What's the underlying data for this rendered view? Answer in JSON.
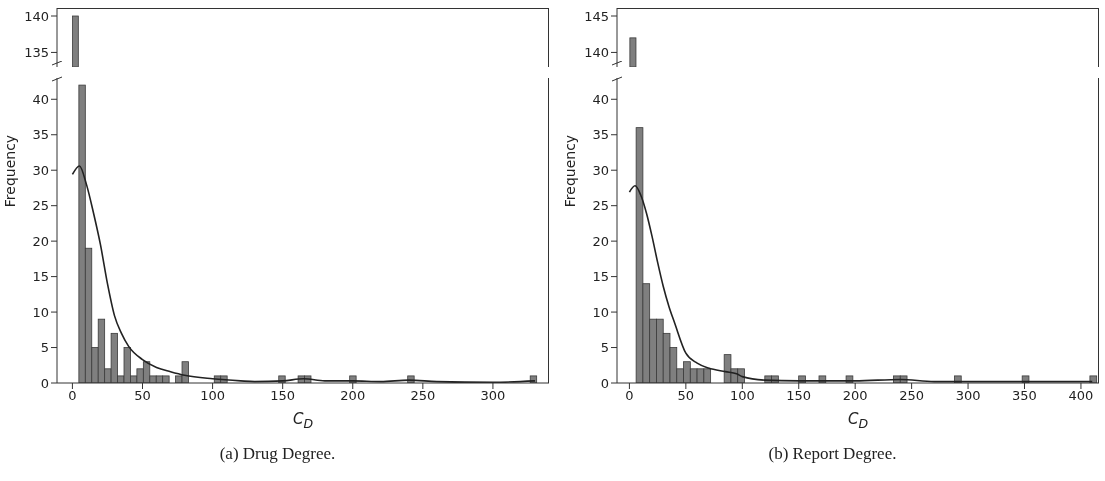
{
  "chart_data": [
    {
      "type": "bar",
      "tick_labels": "y",
      "categories": [
        null
      ],
      "values": [
        140
      ],
      "color": "#7f7f7f",
      "ylim": [
        133,
        141.1
      ],
      "yticks": [
        135,
        140
      ]
    },
    {
      "type": "histogram",
      "title": "(a) Drug Degree.",
      "xlabel": "C$_{D}$",
      "ylabel": "Frequency",
      "xlim": [
        -11,
        340
      ],
      "xticks": [
        0,
        50,
        100,
        150,
        200,
        250,
        300
      ],
      "ylim": [
        0,
        43
      ],
      "yticks": [
        0,
        5,
        10,
        15,
        20,
        25,
        30,
        35,
        40
      ],
      "bins": [
        0,
        4.6,
        9.2,
        13.8,
        18.4,
        23,
        27.6,
        32.2,
        36.8,
        41.4,
        46,
        50.6,
        55.2,
        59.8,
        64.4,
        69,
        73.6,
        78.2,
        82.8,
        87.4,
        92,
        96.6,
        101.2,
        105.8,
        110.4,
        115,
        119.6,
        124.2,
        128.8,
        133.4,
        138,
        142.6,
        147.2,
        151.8,
        156.4,
        161,
        165.6,
        170.2,
        174.8,
        179.4,
        184,
        188.6,
        193.2,
        197.8,
        202.4,
        207,
        211.6,
        216.2,
        220.8,
        225.4,
        230,
        234.6,
        239.2,
        243.8,
        248.4,
        253,
        257.6,
        262.2,
        266.8,
        271.4,
        276,
        280.6,
        285.2,
        289.8,
        294.4,
        299,
        303.6,
        308.2,
        312.8,
        317.4,
        322,
        326.6,
        331.2
      ],
      "series": [
        {
          "color": "#7f7f7f",
          "values": [
            null,
            42,
            19,
            5,
            9,
            2,
            7,
            1,
            5,
            1,
            2,
            3,
            1,
            1,
            1,
            0,
            1,
            3,
            0,
            0,
            0,
            0,
            1,
            1,
            0,
            0,
            0,
            0,
            0,
            0,
            0,
            0,
            1,
            0,
            0,
            1,
            1,
            0,
            0,
            0,
            0,
            0,
            0,
            1,
            0,
            0,
            0,
            0,
            0,
            0,
            0,
            0,
            1,
            0,
            0,
            0,
            0,
            0,
            0,
            0,
            0,
            0,
            0,
            0,
            0,
            0,
            0,
            0,
            0,
            0,
            0,
            1
          ]
        },
        {
          "type": "line",
          "color": "#222222",
          "x": [
            0,
            5,
            10,
            15,
            20,
            25,
            30,
            35,
            40,
            50,
            60,
            70,
            80,
            100,
            120,
            130,
            150,
            165,
            180,
            200,
            220,
            240,
            260,
            300,
            330
          ],
          "values": [
            29.4,
            30.6,
            28,
            24,
            19.5,
            14,
            9.5,
            7,
            5.2,
            3.3,
            2.2,
            1.6,
            1.1,
            0.6,
            0.3,
            0.2,
            0.3,
            0.6,
            0.3,
            0.3,
            0.2,
            0.4,
            0.2,
            0.1,
            0.3
          ]
        }
      ]
    },
    {
      "type": "bar",
      "tick_labels": "y",
      "categories": [
        null
      ],
      "values": [
        142
      ],
      "color": "#7f7f7f",
      "ylim": [
        138,
        146.1
      ],
      "yticks": [
        140,
        145
      ]
    },
    {
      "type": "histogram",
      "title": "(b) Report Degree.",
      "xlabel": "C$_{D}$",
      "ylabel": "Frequency",
      "xlim": [
        -11,
        416
      ],
      "xticks": [
        0,
        50,
        100,
        150,
        200,
        250,
        300,
        350,
        400
      ],
      "ylim": [
        0,
        43
      ],
      "yticks": [
        0,
        5,
        10,
        15,
        20,
        25,
        30,
        35,
        40
      ],
      "bins": [
        0,
        6,
        12,
        18,
        24,
        30,
        36,
        42,
        48,
        54,
        60,
        66,
        72,
        78,
        84,
        90,
        96,
        102,
        108,
        114,
        120,
        126,
        132,
        138,
        144,
        150,
        156,
        162,
        168,
        174,
        180,
        186,
        192,
        198,
        204,
        210,
        216,
        222,
        228,
        234,
        240,
        246,
        252,
        258,
        264,
        270,
        276,
        282,
        288,
        294,
        300,
        306,
        312,
        318,
        324,
        330,
        336,
        342,
        348,
        354,
        360,
        366,
        372,
        378,
        384,
        390,
        396,
        402,
        408,
        414
      ],
      "series": [
        {
          "color": "#7f7f7f",
          "values": [
            null,
            36,
            14,
            9,
            9,
            7,
            5,
            2,
            3,
            2,
            2,
            2,
            0,
            0,
            4,
            2,
            2,
            0,
            0,
            0,
            1,
            1,
            0,
            0,
            0,
            1,
            0,
            0,
            1,
            0,
            0,
            0,
            1,
            0,
            0,
            0,
            0,
            0,
            0,
            1,
            1,
            0,
            0,
            0,
            0,
            0,
            0,
            0,
            1,
            0,
            0,
            0,
            0,
            0,
            0,
            0,
            0,
            0,
            1,
            0,
            0,
            0,
            0,
            0,
            0,
            0,
            0,
            0,
            1
          ]
        },
        {
          "type": "line",
          "color": "#222222",
          "x": [
            0,
            5,
            10,
            15,
            20,
            25,
            30,
            35,
            40,
            50,
            60,
            70,
            85,
            95,
            100,
            120,
            150,
            200,
            240,
            270,
            300,
            350,
            410
          ],
          "values": [
            26.9,
            27.8,
            26.5,
            24,
            20.7,
            17,
            13.6,
            10.8,
            8.5,
            4.2,
            2.8,
            2.1,
            1.6,
            1.3,
            0.9,
            0.4,
            0.3,
            0.3,
            0.5,
            0.2,
            0.2,
            0.2,
            0.2
          ]
        }
      ]
    }
  ]
}
